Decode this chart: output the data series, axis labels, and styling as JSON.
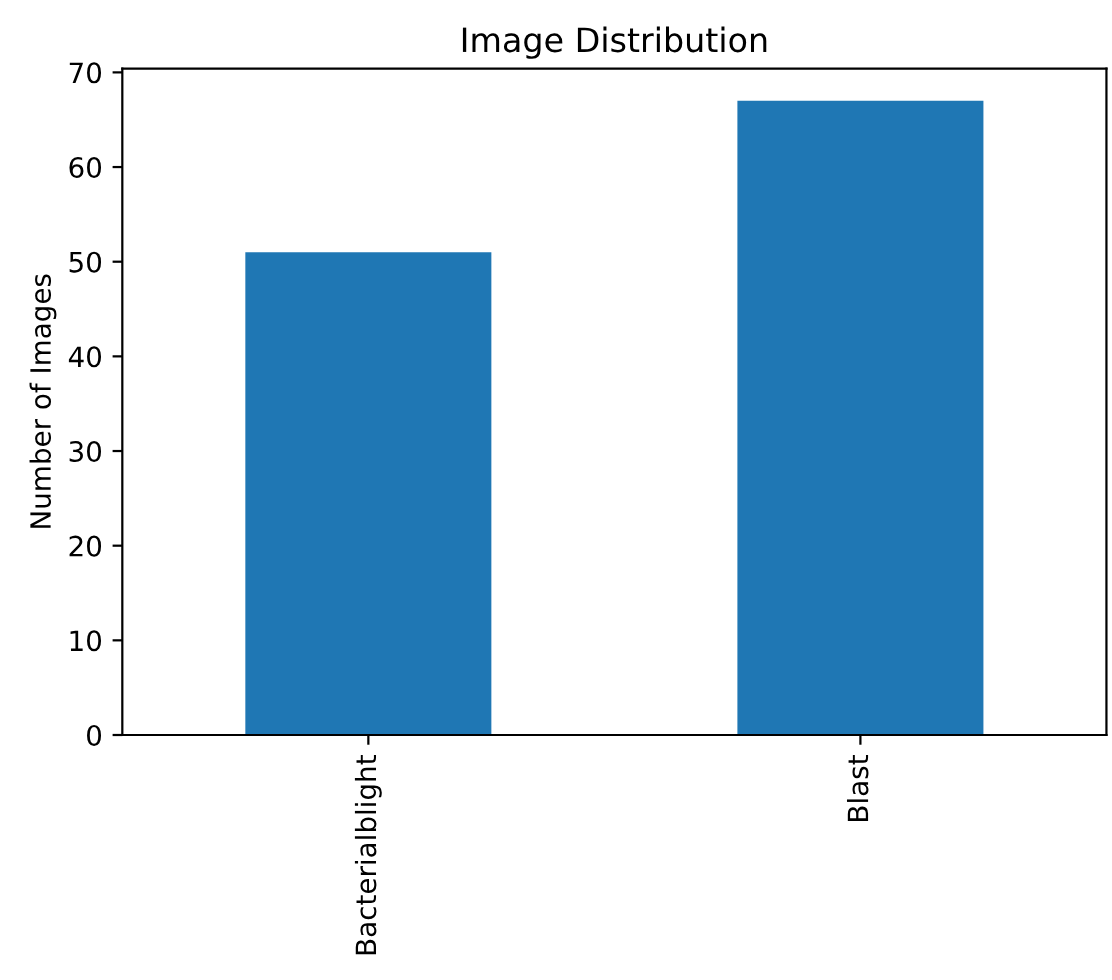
{
  "chart_data": {
    "type": "bar",
    "title": "Image Distribution",
    "ylabel": "Number of Images",
    "categories": [
      "Bacterialblight",
      "Blast"
    ],
    "values": [
      51,
      67
    ],
    "color": "#1f77b4",
    "ylim": [
      0,
      70.4
    ],
    "yticks": [
      0,
      10,
      20,
      30,
      40,
      50,
      60,
      70
    ],
    "grid": false,
    "legend": false
  }
}
